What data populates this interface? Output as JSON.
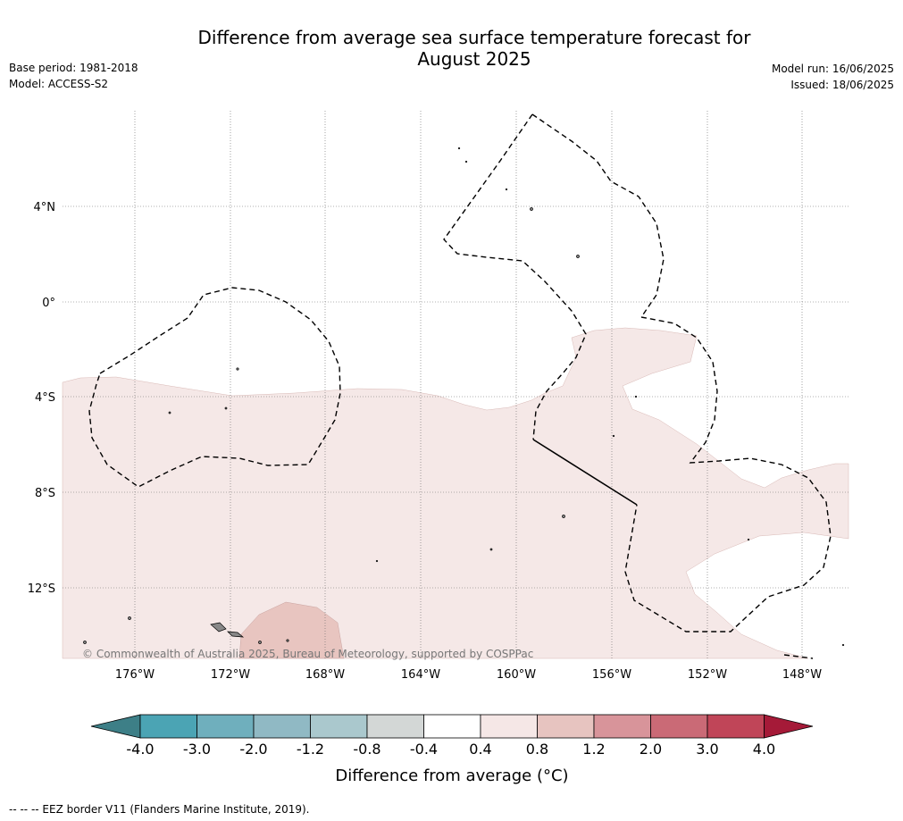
{
  "chart_data": {
    "type": "map",
    "title": "Difference from average sea surface temperature forecast for August 2025",
    "subtitle_left": [
      "Base period: 1981-2018",
      "Model: ACCESS-S2"
    ],
    "subtitle_right": [
      "Model run: 16/06/2025",
      "Issued: 18/06/2025"
    ],
    "lon_ticks": [
      "176°W",
      "172°W",
      "168°W",
      "164°W",
      "160°W",
      "156°W",
      "152°W",
      "148°W"
    ],
    "lon_values": [
      -176,
      -172,
      -168,
      -164,
      -160,
      -156,
      -152,
      -148
    ],
    "lat_ticks": [
      "4°N",
      "0°",
      "4°S",
      "8°S",
      "12°S"
    ],
    "lat_values": [
      4,
      0,
      -4,
      -8,
      -12
    ],
    "lon_range": [
      -179,
      -146
    ],
    "lat_range": [
      -15,
      8
    ],
    "grid": true,
    "copyright": "© Commonwealth of Australia 2025, Bureau of Meteorology, supported by COSPPac",
    "colorbar": {
      "label": "Difference from average (°C)",
      "tick_labels": [
        "-4.0",
        "-3.0",
        "-2.0",
        "-1.2",
        "-0.8",
        "-0.4",
        "0.4",
        "0.8",
        "1.2",
        "2.0",
        "3.0",
        "4.0"
      ],
      "colors": [
        "#3d7f87",
        "#4ba4b4",
        "#6fafbd",
        "#90b9c4",
        "#aac8cd",
        "#d3d7d6",
        "#ffffff",
        "#f5e7e6",
        "#e7c4c0",
        "#d8949a",
        "#ca6a76",
        "#c04558",
        "#a51a38"
      ],
      "extend": "both"
    },
    "regions": [
      {
        "anomaly_range": "0.4 to 0.8",
        "description": "broad band across the central Pacific"
      },
      {
        "anomaly_range": "0.8 to 1.2",
        "description": "small patch near 13–15°S, 171–167°W"
      }
    ]
  },
  "footer": "--  --  -- EEZ border V11 (Flanders Marine Institute, 2019)."
}
